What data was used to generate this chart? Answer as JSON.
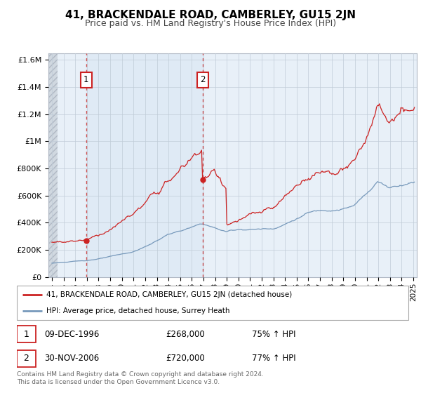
{
  "title": "41, BRACKENDALE ROAD, CAMBERLEY, GU15 2JN",
  "subtitle": "Price paid vs. HM Land Registry's House Price Index (HPI)",
  "legend_line1": "41, BRACKENDALE ROAD, CAMBERLEY, GU15 2JN (detached house)",
  "legend_line2": "HPI: Average price, detached house, Surrey Heath",
  "footnote": "Contains HM Land Registry data © Crown copyright and database right 2024.\nThis data is licensed under the Open Government Licence v3.0.",
  "sale1_date": "09-DEC-1996",
  "sale1_price": "£268,000",
  "sale1_hpi": "75% ↑ HPI",
  "sale2_date": "30-NOV-2006",
  "sale2_price": "£720,000",
  "sale2_hpi": "77% ↑ HPI",
  "hpi_color": "#7799bb",
  "price_color": "#cc2222",
  "marker_color": "#cc2222",
  "background_color": "#ffffff",
  "plot_bg_color": "#e8f0f8",
  "hatch_bg_color": "#d0d8e0",
  "grid_color": "#c0ccd8",
  "ylim": [
    0,
    1650000
  ],
  "yticks": [
    0,
    200000,
    400000,
    600000,
    800000,
    1000000,
    1200000,
    1400000,
    1600000
  ],
  "xlim_start": 1993.7,
  "xlim_end": 2025.3,
  "xticks": [
    1994,
    1995,
    1996,
    1997,
    1998,
    1999,
    2000,
    2001,
    2002,
    2003,
    2004,
    2005,
    2006,
    2007,
    2008,
    2009,
    2010,
    2011,
    2012,
    2013,
    2014,
    2015,
    2016,
    2017,
    2018,
    2019,
    2020,
    2021,
    2022,
    2023,
    2024,
    2025
  ],
  "sale1_x": 1996.94,
  "sale2_x": 2006.92,
  "hatch_end": 1994.5,
  "blue_shade_end": 2007.0,
  "title_fontsize": 11,
  "subtitle_fontsize": 9,
  "tick_fontsize": 7.5,
  "ytick_fontsize": 8
}
